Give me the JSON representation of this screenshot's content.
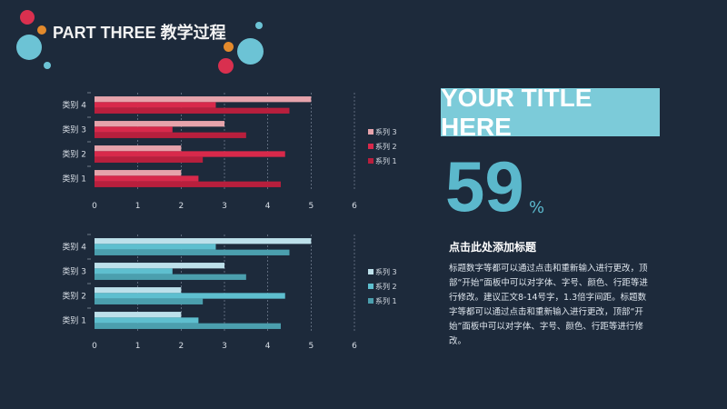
{
  "header": {
    "title": "PART THREE 教学过程"
  },
  "decor_colors": {
    "red": "#d9304f",
    "orange": "#e38a2c",
    "blue": "#6cc3d5"
  },
  "panel": {
    "title_box": "YOUR TITLE HERE",
    "big_number": "59",
    "percent": "%",
    "subtitle": "点击此处添加标题",
    "body": "标题数字等都可以通过点击和重新输入进行更改，顶部“开始”面板中可以对字体、字号、颜色、行距等进行修改。建议正文8-14号字，1.3倍字间距。标题数字等都可以通过点击和重新输入进行更改，顶部“开始”面板中可以对字体、字号、颜色、行距等进行修改。"
  },
  "chart_data": [
    {
      "type": "bar",
      "orientation": "horizontal",
      "categories": [
        "类别 1",
        "类别 2",
        "类别 3",
        "类别 4"
      ],
      "series": [
        {
          "name": "系列 1",
          "values": [
            4.3,
            2.5,
            3.5,
            4.5
          ],
          "color": "#b81f3d"
        },
        {
          "name": "系列 2",
          "values": [
            2.4,
            4.4,
            1.8,
            2.8
          ],
          "color": "#d8294b"
        },
        {
          "name": "系列 3",
          "values": [
            2,
            2,
            3,
            5
          ],
          "color": "#e6a3ab"
        }
      ],
      "xlim": [
        0,
        6
      ],
      "ticks": [
        "0",
        "1",
        "2",
        "3",
        "4",
        "5",
        "6"
      ],
      "grid": true,
      "legend": "right"
    },
    {
      "type": "bar",
      "orientation": "horizontal",
      "categories": [
        "类别 1",
        "类别 2",
        "类别 3",
        "类别 4"
      ],
      "series": [
        {
          "name": "系列 1",
          "values": [
            4.3,
            2.5,
            3.5,
            4.5
          ],
          "color": "#4b9fae"
        },
        {
          "name": "系列 2",
          "values": [
            2.4,
            4.4,
            1.8,
            2.8
          ],
          "color": "#5ebfcf"
        },
        {
          "name": "系列 3",
          "values": [
            2,
            2,
            3,
            5
          ],
          "color": "#bde0ea"
        }
      ],
      "xlim": [
        0,
        6
      ],
      "ticks": [
        "0",
        "1",
        "2",
        "3",
        "4",
        "5",
        "6"
      ],
      "grid": true,
      "legend": "right"
    }
  ]
}
